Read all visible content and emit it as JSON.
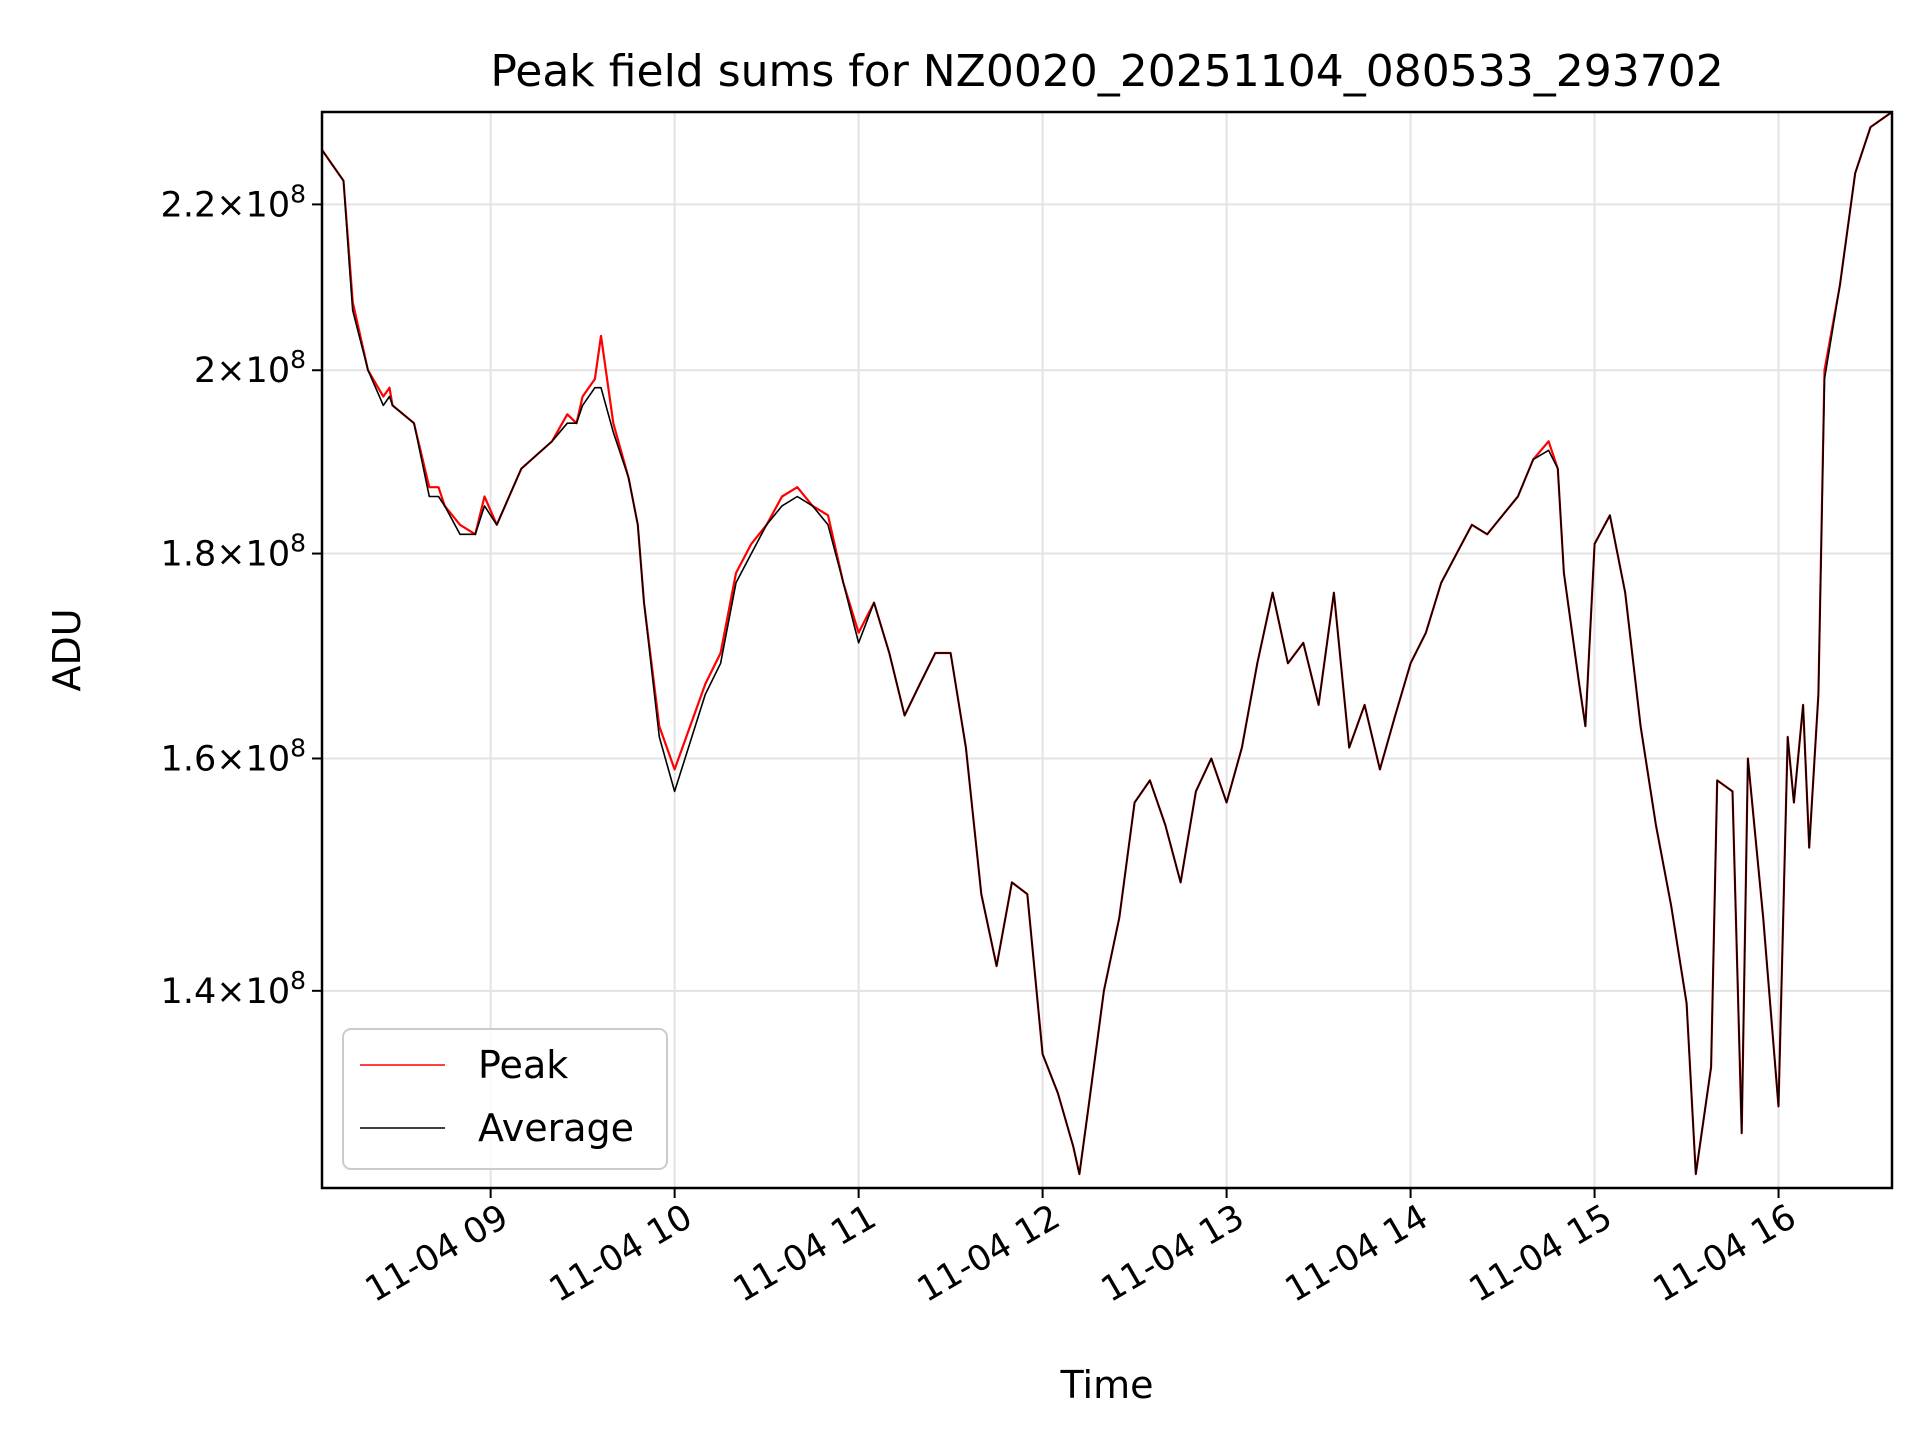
{
  "chart_data": {
    "type": "line",
    "title": "Peak field sums for NZ0020_20251104_080533_293702",
    "xlabel": "Time",
    "ylabel": "ADU",
    "yscale": "log",
    "grid": true,
    "legend_position": "lower-left",
    "xlim": [
      "2025-11-04T08:05",
      "2025-11-04T16:37"
    ],
    "ylim": [
      125000000,
      232000000
    ],
    "x_ticks": [
      {
        "value": "2025-11-04T09:00",
        "label": "11-04 09"
      },
      {
        "value": "2025-11-04T10:00",
        "label": "11-04 10"
      },
      {
        "value": "2025-11-04T11:00",
        "label": "11-04 11"
      },
      {
        "value": "2025-11-04T12:00",
        "label": "11-04 12"
      },
      {
        "value": "2025-11-04T13:00",
        "label": "11-04 13"
      },
      {
        "value": "2025-11-04T14:00",
        "label": "11-04 14"
      },
      {
        "value": "2025-11-04T15:00",
        "label": "11-04 15"
      },
      {
        "value": "2025-11-04T16:00",
        "label": "11-04 16"
      }
    ],
    "y_ticks": [
      {
        "value": 140000000,
        "mantissa": "1.4",
        "exp": "8"
      },
      {
        "value": 160000000,
        "mantissa": "1.6",
        "exp": "8"
      },
      {
        "value": 180000000,
        "mantissa": "1.8",
        "exp": "8"
      },
      {
        "value": 200000000,
        "mantissa": "2",
        "exp": "8"
      },
      {
        "value": 220000000,
        "mantissa": "2.2",
        "exp": "8"
      }
    ],
    "series": [
      {
        "name": "Peak",
        "color": "#ff0000",
        "x": [
          "2025-11-04T08:05",
          "2025-11-04T08:12",
          "2025-11-04T08:14",
          "2025-11-04T08:15",
          "2025-11-04T08:20",
          "2025-11-04T08:25",
          "2025-11-04T08:27",
          "2025-11-04T08:28",
          "2025-11-04T08:35",
          "2025-11-04T08:40",
          "2025-11-04T08:43",
          "2025-11-04T08:45",
          "2025-11-04T08:50",
          "2025-11-04T08:55",
          "2025-11-04T08:58",
          "2025-11-04T09:02",
          "2025-11-04T09:10",
          "2025-11-04T09:20",
          "2025-11-04T09:25",
          "2025-11-04T09:28",
          "2025-11-04T09:30",
          "2025-11-04T09:34",
          "2025-11-04T09:36",
          "2025-11-04T09:40",
          "2025-11-04T09:45",
          "2025-11-04T09:48",
          "2025-11-04T09:50",
          "2025-11-04T09:55",
          "2025-11-04T10:00",
          "2025-11-04T10:10",
          "2025-11-04T10:15",
          "2025-11-04T10:20",
          "2025-11-04T10:25",
          "2025-11-04T10:30",
          "2025-11-04T10:35",
          "2025-11-04T10:40",
          "2025-11-04T10:45",
          "2025-11-04T10:50",
          "2025-11-04T10:55",
          "2025-11-04T11:00",
          "2025-11-04T11:05",
          "2025-11-04T11:10",
          "2025-11-04T11:15",
          "2025-11-04T11:20",
          "2025-11-04T11:25",
          "2025-11-04T11:30",
          "2025-11-04T11:35",
          "2025-11-04T11:40",
          "2025-11-04T11:45",
          "2025-11-04T11:50",
          "2025-11-04T11:55",
          "2025-11-04T12:00",
          "2025-11-04T12:05",
          "2025-11-04T12:10",
          "2025-11-04T12:12",
          "2025-11-04T12:15",
          "2025-11-04T12:20",
          "2025-11-04T12:25",
          "2025-11-04T12:30",
          "2025-11-04T12:35",
          "2025-11-04T12:40",
          "2025-11-04T12:45",
          "2025-11-04T12:50",
          "2025-11-04T12:55",
          "2025-11-04T13:00",
          "2025-11-04T13:05",
          "2025-11-04T13:10",
          "2025-11-04T13:15",
          "2025-11-04T13:20",
          "2025-11-04T13:25",
          "2025-11-04T13:30",
          "2025-11-04T13:35",
          "2025-11-04T13:40",
          "2025-11-04T13:45",
          "2025-11-04T13:50",
          "2025-11-04T13:55",
          "2025-11-04T14:00",
          "2025-11-04T14:05",
          "2025-11-04T14:10",
          "2025-11-04T14:15",
          "2025-11-04T14:20",
          "2025-11-04T14:25",
          "2025-11-04T14:30",
          "2025-11-04T14:35",
          "2025-11-04T14:40",
          "2025-11-04T14:45",
          "2025-11-04T14:48",
          "2025-11-04T14:50",
          "2025-11-04T14:55",
          "2025-11-04T14:57",
          "2025-11-04T15:00",
          "2025-11-04T15:05",
          "2025-11-04T15:10",
          "2025-11-04T15:15",
          "2025-11-04T15:20",
          "2025-11-04T15:25",
          "2025-11-04T15:30",
          "2025-11-04T15:33",
          "2025-11-04T15:38",
          "2025-11-04T15:40",
          "2025-11-04T15:45",
          "2025-11-04T15:48",
          "2025-11-04T15:50",
          "2025-11-04T15:55",
          "2025-11-04T16:00",
          "2025-11-04T16:03",
          "2025-11-04T16:05",
          "2025-11-04T16:08",
          "2025-11-04T16:10",
          "2025-11-04T16:13",
          "2025-11-04T16:15",
          "2025-11-04T16:20",
          "2025-11-04T16:25",
          "2025-11-04T16:30",
          "2025-11-04T16:37"
        ],
        "y": [
          227000000,
          223000000,
          213000000,
          208000000,
          200000000,
          197000000,
          198000000,
          196000000,
          194000000,
          187000000,
          187000000,
          185000000,
          183000000,
          182000000,
          186000000,
          183000000,
          189000000,
          192000000,
          195000000,
          194000000,
          197000000,
          199000000,
          204000000,
          194000000,
          188000000,
          183000000,
          175000000,
          163000000,
          159000000,
          167000000,
          170000000,
          178000000,
          181000000,
          183000000,
          186000000,
          187000000,
          185000000,
          184000000,
          177000000,
          172000000,
          175000000,
          170000000,
          164000000,
          167000000,
          170000000,
          170000000,
          161000000,
          148000000,
          142000000,
          149000000,
          148000000,
          135000000,
          132000000,
          128000000,
          126000000,
          131000000,
          140000000,
          146000000,
          156000000,
          158000000,
          154000000,
          149000000,
          157000000,
          160000000,
          156000000,
          161000000,
          169000000,
          176000000,
          169000000,
          171000000,
          165000000,
          176000000,
          161000000,
          165000000,
          159000000,
          164000000,
          169000000,
          172000000,
          177000000,
          180000000,
          183000000,
          182000000,
          184000000,
          186000000,
          190000000,
          192000000,
          189000000,
          178000000,
          167000000,
          163000000,
          181000000,
          184000000,
          176000000,
          163000000,
          154000000,
          147000000,
          139000000,
          126000000,
          134000000,
          158000000,
          157000000,
          129000000,
          160000000,
          146000000,
          131000000,
          162000000,
          156000000,
          165000000,
          152000000,
          166000000,
          200000000,
          210000000,
          224000000,
          230000000,
          232000000
        ]
      },
      {
        "name": "Average",
        "color": "#000000",
        "x": [
          "2025-11-04T08:05",
          "2025-11-04T08:12",
          "2025-11-04T08:14",
          "2025-11-04T08:15",
          "2025-11-04T08:20",
          "2025-11-04T08:25",
          "2025-11-04T08:27",
          "2025-11-04T08:28",
          "2025-11-04T08:35",
          "2025-11-04T08:40",
          "2025-11-04T08:43",
          "2025-11-04T08:45",
          "2025-11-04T08:50",
          "2025-11-04T08:55",
          "2025-11-04T08:58",
          "2025-11-04T09:02",
          "2025-11-04T09:10",
          "2025-11-04T09:20",
          "2025-11-04T09:25",
          "2025-11-04T09:28",
          "2025-11-04T09:30",
          "2025-11-04T09:34",
          "2025-11-04T09:36",
          "2025-11-04T09:40",
          "2025-11-04T09:45",
          "2025-11-04T09:48",
          "2025-11-04T09:50",
          "2025-11-04T09:55",
          "2025-11-04T10:00",
          "2025-11-04T10:10",
          "2025-11-04T10:15",
          "2025-11-04T10:20",
          "2025-11-04T10:25",
          "2025-11-04T10:30",
          "2025-11-04T10:35",
          "2025-11-04T10:40",
          "2025-11-04T10:45",
          "2025-11-04T10:50",
          "2025-11-04T10:55",
          "2025-11-04T11:00",
          "2025-11-04T11:05",
          "2025-11-04T11:10",
          "2025-11-04T11:15",
          "2025-11-04T11:20",
          "2025-11-04T11:25",
          "2025-11-04T11:30",
          "2025-11-04T11:35",
          "2025-11-04T11:40",
          "2025-11-04T11:45",
          "2025-11-04T11:50",
          "2025-11-04T11:55",
          "2025-11-04T12:00",
          "2025-11-04T12:05",
          "2025-11-04T12:10",
          "2025-11-04T12:12",
          "2025-11-04T12:15",
          "2025-11-04T12:20",
          "2025-11-04T12:25",
          "2025-11-04T12:30",
          "2025-11-04T12:35",
          "2025-11-04T12:40",
          "2025-11-04T12:45",
          "2025-11-04T12:50",
          "2025-11-04T12:55",
          "2025-11-04T13:00",
          "2025-11-04T13:05",
          "2025-11-04T13:10",
          "2025-11-04T13:15",
          "2025-11-04T13:20",
          "2025-11-04T13:25",
          "2025-11-04T13:30",
          "2025-11-04T13:35",
          "2025-11-04T13:40",
          "2025-11-04T13:45",
          "2025-11-04T13:50",
          "2025-11-04T13:55",
          "2025-11-04T14:00",
          "2025-11-04T14:05",
          "2025-11-04T14:10",
          "2025-11-04T14:15",
          "2025-11-04T14:20",
          "2025-11-04T14:25",
          "2025-11-04T14:30",
          "2025-11-04T14:35",
          "2025-11-04T14:40",
          "2025-11-04T14:45",
          "2025-11-04T14:48",
          "2025-11-04T14:50",
          "2025-11-04T14:55",
          "2025-11-04T14:57",
          "2025-11-04T15:00",
          "2025-11-04T15:05",
          "2025-11-04T15:10",
          "2025-11-04T15:15",
          "2025-11-04T15:20",
          "2025-11-04T15:25",
          "2025-11-04T15:30",
          "2025-11-04T15:33",
          "2025-11-04T15:38",
          "2025-11-04T15:40",
          "2025-11-04T15:45",
          "2025-11-04T15:48",
          "2025-11-04T15:50",
          "2025-11-04T15:55",
          "2025-11-04T16:00",
          "2025-11-04T16:03",
          "2025-11-04T16:05",
          "2025-11-04T16:08",
          "2025-11-04T16:10",
          "2025-11-04T16:13",
          "2025-11-04T16:15",
          "2025-11-04T16:20",
          "2025-11-04T16:25",
          "2025-11-04T16:30",
          "2025-11-04T16:37"
        ],
        "y": [
          227000000,
          223000000,
          212000000,
          207000000,
          200000000,
          196000000,
          197000000,
          196000000,
          194000000,
          186000000,
          186000000,
          185000000,
          182000000,
          182000000,
          185000000,
          183000000,
          189000000,
          192000000,
          194000000,
          194000000,
          196000000,
          198000000,
          198000000,
          193000000,
          188000000,
          183000000,
          175000000,
          162000000,
          157000000,
          166000000,
          169000000,
          177000000,
          180000000,
          183000000,
          185000000,
          186000000,
          185000000,
          183000000,
          177000000,
          171000000,
          175000000,
          170000000,
          164000000,
          167000000,
          170000000,
          170000000,
          161000000,
          148000000,
          142000000,
          149000000,
          148000000,
          135000000,
          132000000,
          128000000,
          126000000,
          131000000,
          140000000,
          146000000,
          156000000,
          158000000,
          154000000,
          149000000,
          157000000,
          160000000,
          156000000,
          161000000,
          169000000,
          176000000,
          169000000,
          171000000,
          165000000,
          176000000,
          161000000,
          165000000,
          159000000,
          164000000,
          169000000,
          172000000,
          177000000,
          180000000,
          183000000,
          182000000,
          184000000,
          186000000,
          190000000,
          191000000,
          189000000,
          178000000,
          167000000,
          163000000,
          181000000,
          184000000,
          176000000,
          163000000,
          154000000,
          147000000,
          139000000,
          126000000,
          134000000,
          158000000,
          157000000,
          129000000,
          160000000,
          146000000,
          131000000,
          162000000,
          156000000,
          165000000,
          152000000,
          166000000,
          199000000,
          210000000,
          224000000,
          230000000,
          232000000
        ]
      }
    ]
  }
}
